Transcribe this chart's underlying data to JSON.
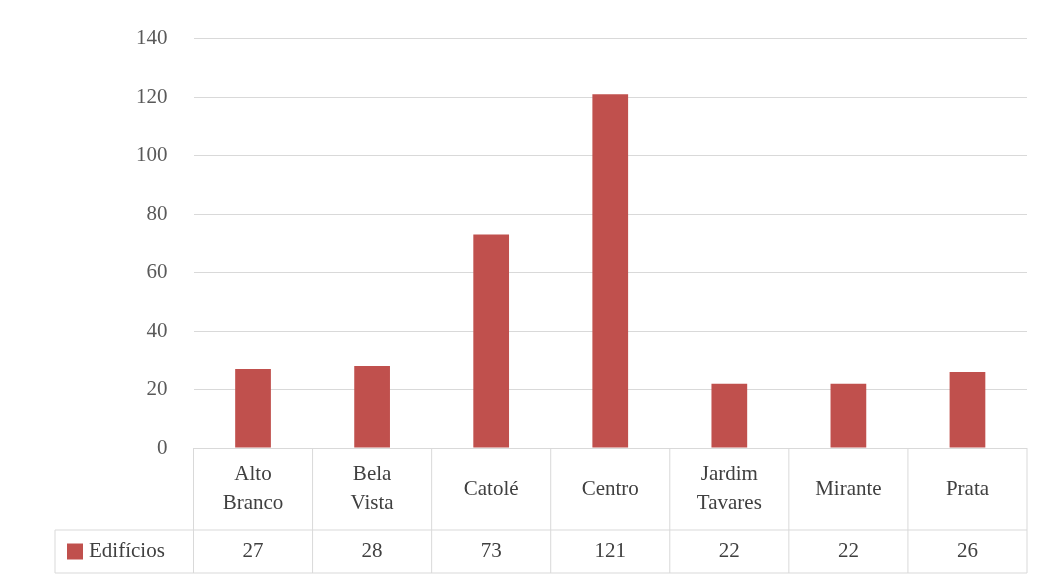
{
  "chart_data": {
    "type": "bar",
    "categories": [
      "Alto Branco",
      "Bela Vista",
      "Catolé",
      "Centro",
      "Jardim Tavares",
      "Mirante",
      "Prata"
    ],
    "series": [
      {
        "name": "Edifícios",
        "color": "#c0504d",
        "values": [
          27,
          28,
          73,
          121,
          22,
          22,
          26
        ]
      }
    ],
    "ylim": [
      0,
      140
    ],
    "yticks": [
      0,
      20,
      40,
      60,
      80,
      100,
      120,
      140
    ],
    "grid": "y",
    "legend": "bottom",
    "data_labels": true
  }
}
